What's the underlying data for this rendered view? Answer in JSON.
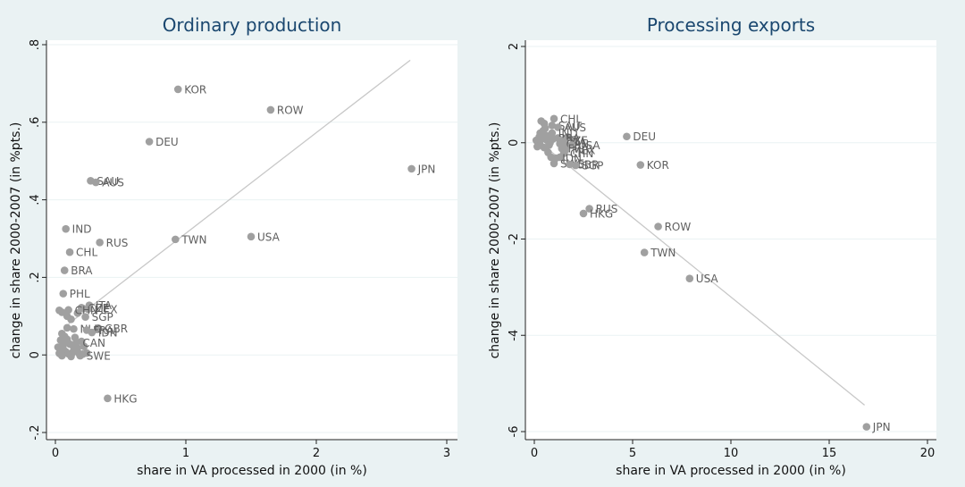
{
  "colors": {
    "background": "#eaf2f3",
    "plot_area": "#ffffff",
    "grid": "#eaf2f3",
    "marker": "#a0a0a0",
    "fit_line": "#c8c8c8",
    "title": "#1a476f",
    "label": "#5f5f5f"
  },
  "chart_data": [
    {
      "type": "scatter",
      "title": "Ordinary production",
      "xlabel": "share in VA processed in 2000 (in %)",
      "ylabel": "change in share 2000-2007 (in %pts.)",
      "xlim": [
        0,
        3
      ],
      "ylim": [
        -0.2,
        0.8
      ],
      "xticks": [
        0,
        1,
        2,
        3
      ],
      "xtick_labels": [
        "0",
        "1",
        "2",
        "3"
      ],
      "yticks": [
        -0.2,
        0,
        0.2,
        0.4,
        0.6,
        0.8
      ],
      "ytick_labels": [
        "-.2",
        "0",
        ".2",
        ".4",
        ".6",
        ".8"
      ],
      "grid": true,
      "fit_line": {
        "x": [
          0.1,
          2.72
        ],
        "y": [
          0.08,
          0.76
        ]
      },
      "labeled_points": [
        {
          "label": "KOR",
          "x": 0.94,
          "y": 0.685
        },
        {
          "label": "ROW",
          "x": 1.65,
          "y": 0.632
        },
        {
          "label": "DEU",
          "x": 0.72,
          "y": 0.55
        },
        {
          "label": "JPN",
          "x": 2.73,
          "y": 0.48
        },
        {
          "label": "SAU",
          "x": 0.27,
          "y": 0.449
        },
        {
          "label": "AUS",
          "x": 0.31,
          "y": 0.445
        },
        {
          "label": "IND",
          "x": 0.08,
          "y": 0.325
        },
        {
          "label": "RUS",
          "x": 0.34,
          "y": 0.29
        },
        {
          "label": "TWN",
          "x": 0.92,
          "y": 0.298
        },
        {
          "label": "USA",
          "x": 1.5,
          "y": 0.305
        },
        {
          "label": "CHL",
          "x": 0.11,
          "y": 0.265
        },
        {
          "label": "BRA",
          "x": 0.07,
          "y": 0.218
        },
        {
          "label": "PHL",
          "x": 0.06,
          "y": 0.158
        },
        {
          "label": "ITA",
          "x": 0.26,
          "y": 0.128
        },
        {
          "label": "CZE",
          "x": 0.2,
          "y": 0.122
        },
        {
          "label": "MEX",
          "x": 0.25,
          "y": 0.118
        },
        {
          "label": "CHN",
          "x": 0.1,
          "y": 0.116
        },
        {
          "label": "SGP",
          "x": 0.23,
          "y": 0.098
        },
        {
          "label": "GBR",
          "x": 0.33,
          "y": 0.069
        },
        {
          "label": "NLD",
          "x": 0.14,
          "y": 0.067
        },
        {
          "label": "FRA",
          "x": 0.24,
          "y": 0.064
        },
        {
          "label": "IDN",
          "x": 0.28,
          "y": 0.058
        },
        {
          "label": "CAN",
          "x": 0.16,
          "y": 0.032
        },
        {
          "label": "SWE",
          "x": 0.19,
          "y": -0.002
        },
        {
          "label": "HKG",
          "x": 0.4,
          "y": -0.112
        }
      ],
      "unlabeled_points": [
        {
          "x": 0.03,
          "y": 0.115
        },
        {
          "x": 0.05,
          "y": 0.11
        },
        {
          "x": 0.09,
          "y": 0.1
        },
        {
          "x": 0.12,
          "y": 0.092
        },
        {
          "x": 0.17,
          "y": 0.108
        },
        {
          "x": 0.21,
          "y": 0.12
        },
        {
          "x": 0.05,
          "y": 0.055
        },
        {
          "x": 0.07,
          "y": 0.048
        },
        {
          "x": 0.04,
          "y": 0.038
        },
        {
          "x": 0.09,
          "y": 0.04
        },
        {
          "x": 0.11,
          "y": 0.028
        },
        {
          "x": 0.14,
          "y": 0.02
        },
        {
          "x": 0.02,
          "y": 0.02
        },
        {
          "x": 0.06,
          "y": 0.015
        },
        {
          "x": 0.08,
          "y": 0.008
        },
        {
          "x": 0.1,
          "y": 0.003
        },
        {
          "x": 0.13,
          "y": 0.006
        },
        {
          "x": 0.16,
          "y": 0.012
        },
        {
          "x": 0.18,
          "y": 0.004
        },
        {
          "x": 0.21,
          "y": 0.002
        },
        {
          "x": 0.24,
          "y": 0.005
        },
        {
          "x": 0.03,
          "y": 0.004
        },
        {
          "x": 0.05,
          "y": -0.002
        },
        {
          "x": 0.12,
          "y": -0.004
        },
        {
          "x": 0.17,
          "y": 0.018
        },
        {
          "x": 0.22,
          "y": 0.022
        },
        {
          "x": 0.09,
          "y": 0.07
        },
        {
          "x": 0.06,
          "y": 0.026
        },
        {
          "x": 0.15,
          "y": 0.045
        },
        {
          "x": 0.2,
          "y": 0.035
        }
      ]
    },
    {
      "type": "scatter",
      "title": "Processing exports",
      "xlabel": "share in VA processed in 2000 (in %)",
      "ylabel": "change in share 2000-2007 (in %pts.)",
      "xlim": [
        0,
        20
      ],
      "ylim": [
        -6,
        2
      ],
      "xticks": [
        0,
        5,
        10,
        15,
        20
      ],
      "xtick_labels": [
        "0",
        "5",
        "10",
        "15",
        "20"
      ],
      "yticks": [
        -6,
        -4,
        -2,
        0,
        2
      ],
      "ytick_labels": [
        "-6",
        "-4",
        "-2",
        "0",
        "2"
      ],
      "grid": true,
      "fit_line": {
        "x": [
          0.6,
          16.8
        ],
        "y": [
          -0.1,
          -5.45
        ]
      },
      "labeled_points": [
        {
          "label": "CHL",
          "x": 1.0,
          "y": 0.5
        },
        {
          "label": "SAU",
          "x": 0.9,
          "y": 0.36
        },
        {
          "label": "AUS",
          "x": 1.2,
          "y": 0.32
        },
        {
          "label": "IND",
          "x": 0.9,
          "y": 0.2
        },
        {
          "label": "BRA",
          "x": 0.9,
          "y": 0.1
        },
        {
          "label": "CZE",
          "x": 1.3,
          "y": 0.05
        },
        {
          "label": "ITA",
          "x": 1.5,
          "y": 0.02
        },
        {
          "label": "CAN",
          "x": 1.3,
          "y": -0.02
        },
        {
          "label": "USA",
          "x": 1.9,
          "y": -0.05
        },
        {
          "label": "FRA",
          "x": 1.4,
          "y": -0.12
        },
        {
          "label": "MEX",
          "x": 1.6,
          "y": -0.15
        },
        {
          "label": "CHN",
          "x": 1.5,
          "y": -0.22
        },
        {
          "label": "IDN",
          "x": 1.1,
          "y": -0.32
        },
        {
          "label": "SWE",
          "x": 1.0,
          "y": -0.43
        },
        {
          "label": "GBR",
          "x": 1.8,
          "y": -0.45
        },
        {
          "label": "SGP",
          "x": 2.1,
          "y": -0.47
        },
        {
          "label": "DEU",
          "x": 4.7,
          "y": 0.13
        },
        {
          "label": "KOR",
          "x": 5.4,
          "y": -0.46
        },
        {
          "label": "RUS",
          "x": 2.8,
          "y": -1.37
        },
        {
          "label": "HKG",
          "x": 2.5,
          "y": -1.47
        },
        {
          "label": "ROW",
          "x": 6.3,
          "y": -1.74
        },
        {
          "label": "TWN",
          "x": 5.6,
          "y": -2.28
        },
        {
          "label": "USA",
          "x": 7.9,
          "y": -2.82
        },
        {
          "label": "JPN",
          "x": 16.9,
          "y": -5.9
        }
      ],
      "unlabeled_points": [
        {
          "x": 0.1,
          "y": 0.05
        },
        {
          "x": 0.2,
          "y": 0.0
        },
        {
          "x": 0.3,
          "y": -0.05
        },
        {
          "x": 0.25,
          "y": 0.12
        },
        {
          "x": 0.4,
          "y": 0.08
        },
        {
          "x": 0.5,
          "y": -0.1
        },
        {
          "x": 0.45,
          "y": 0.25
        },
        {
          "x": 0.55,
          "y": 0.3
        },
        {
          "x": 0.35,
          "y": 0.45
        },
        {
          "x": 0.6,
          "y": 0.15
        },
        {
          "x": 0.7,
          "y": -0.2
        },
        {
          "x": 0.8,
          "y": 0.0
        },
        {
          "x": 0.15,
          "y": -0.08
        },
        {
          "x": 0.65,
          "y": 0.05
        },
        {
          "x": 0.75,
          "y": -0.05
        },
        {
          "x": 1.2,
          "y": 0.1
        },
        {
          "x": 1.6,
          "y": -0.08
        },
        {
          "x": 2.0,
          "y": 0.02
        },
        {
          "x": 0.5,
          "y": 0.4
        },
        {
          "x": 0.3,
          "y": 0.2
        },
        {
          "x": 0.85,
          "y": -0.3
        },
        {
          "x": 1.3,
          "y": -0.3
        },
        {
          "x": 0.95,
          "y": 0.08
        },
        {
          "x": 1.7,
          "y": 0.12
        }
      ]
    }
  ]
}
